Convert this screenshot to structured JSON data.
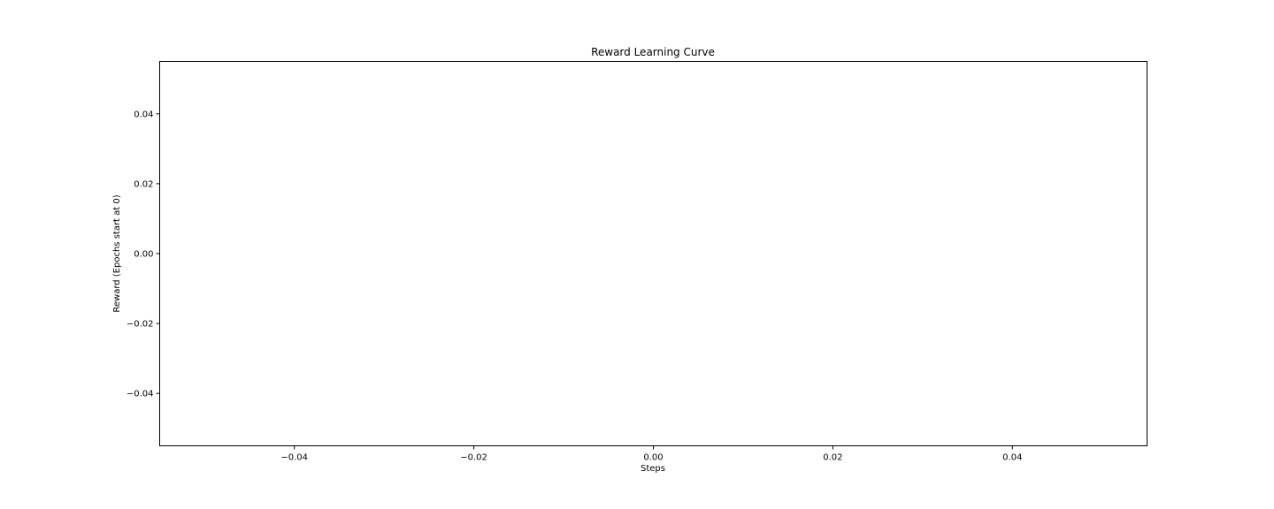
{
  "chart_data": {
    "type": "line",
    "title": "Reward Learning Curve",
    "xlabel": "Steps",
    "ylabel": "Reward (Epochs start at 0)",
    "xlim": [
      -0.055,
      0.055
    ],
    "ylim": [
      -0.055,
      0.055
    ],
    "xticks": [
      -0.04,
      -0.02,
      0.0,
      0.02,
      0.04
    ],
    "xtick_labels": [
      "−0.04",
      "−0.02",
      "0.00",
      "0.02",
      "0.04"
    ],
    "yticks": [
      -0.04,
      -0.02,
      0.0,
      0.02,
      0.04
    ],
    "ytick_labels": [
      "−0.04",
      "−0.02",
      "0.00",
      "0.02",
      "0.04"
    ],
    "grid": false,
    "series": [
      {
        "x": [],
        "y": []
      }
    ],
    "colors": {
      "axes": "#000000",
      "background": "#ffffff"
    }
  }
}
